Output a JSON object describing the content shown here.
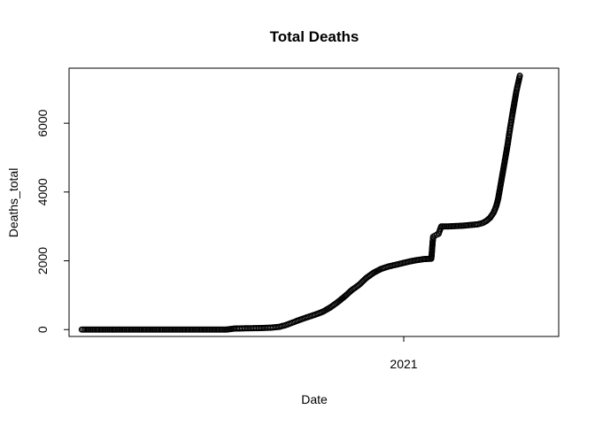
{
  "chart_data": {
    "type": "scatter",
    "title": "Total Deaths",
    "xlabel": "Date",
    "ylabel": "Deaths_total",
    "x_ticks": [
      "2021"
    ],
    "y_ticks": [
      0,
      2000,
      4000,
      6000
    ],
    "ylim": [
      -200,
      7600
    ],
    "xlim": [
      "2020-01-09",
      "2021-07-04"
    ],
    "grid": false,
    "legend": "none",
    "marker": "open-circle",
    "points": [
      {
        "x": "2020-01-23",
        "y": 0
      },
      {
        "x": "2020-02-08",
        "y": 0
      },
      {
        "x": "2020-02-24",
        "y": 0
      },
      {
        "x": "2020-03-11",
        "y": 0
      },
      {
        "x": "2020-03-27",
        "y": 0
      },
      {
        "x": "2020-04-12",
        "y": 0
      },
      {
        "x": "2020-04-28",
        "y": 0
      },
      {
        "x": "2020-05-14",
        "y": 0
      },
      {
        "x": "2020-05-30",
        "y": 0
      },
      {
        "x": "2020-06-15",
        "y": 0
      },
      {
        "x": "2020-07-01",
        "y": 0
      },
      {
        "x": "2020-07-10",
        "y": 30
      },
      {
        "x": "2020-07-20",
        "y": 35
      },
      {
        "x": "2020-07-30",
        "y": 40
      },
      {
        "x": "2020-08-09",
        "y": 45
      },
      {
        "x": "2020-08-19",
        "y": 55
      },
      {
        "x": "2020-08-29",
        "y": 80
      },
      {
        "x": "2020-09-06",
        "y": 140
      },
      {
        "x": "2020-09-14",
        "y": 220
      },
      {
        "x": "2020-09-22",
        "y": 300
      },
      {
        "x": "2020-09-30",
        "y": 370
      },
      {
        "x": "2020-10-08",
        "y": 440
      },
      {
        "x": "2020-10-16",
        "y": 520
      },
      {
        "x": "2020-10-24",
        "y": 640
      },
      {
        "x": "2020-11-01",
        "y": 790
      },
      {
        "x": "2020-11-09",
        "y": 960
      },
      {
        "x": "2020-11-17",
        "y": 1150
      },
      {
        "x": "2020-11-25",
        "y": 1300
      },
      {
        "x": "2020-12-03",
        "y": 1500
      },
      {
        "x": "2020-12-11",
        "y": 1650
      },
      {
        "x": "2020-12-19",
        "y": 1760
      },
      {
        "x": "2020-12-27",
        "y": 1830
      },
      {
        "x": "2021-01-04",
        "y": 1880
      },
      {
        "x": "2021-01-12",
        "y": 1930
      },
      {
        "x": "2021-01-20",
        "y": 1980
      },
      {
        "x": "2021-01-28",
        "y": 2020
      },
      {
        "x": "2021-02-05",
        "y": 2050
      },
      {
        "x": "2021-02-13",
        "y": 2060
      },
      {
        "x": "2021-02-15",
        "y": 2700
      },
      {
        "x": "2021-02-17",
        "y": 2730
      },
      {
        "x": "2021-02-19",
        "y": 2760
      },
      {
        "x": "2021-02-21",
        "y": 2780
      },
      {
        "x": "2021-02-24",
        "y": 3000
      },
      {
        "x": "2021-03-04",
        "y": 3000
      },
      {
        "x": "2021-03-12",
        "y": 3010
      },
      {
        "x": "2021-03-20",
        "y": 3020
      },
      {
        "x": "2021-03-28",
        "y": 3040
      },
      {
        "x": "2021-04-05",
        "y": 3060
      },
      {
        "x": "2021-04-11",
        "y": 3100
      },
      {
        "x": "2021-04-15",
        "y": 3160
      },
      {
        "x": "2021-04-19",
        "y": 3250
      },
      {
        "x": "2021-04-23",
        "y": 3400
      },
      {
        "x": "2021-04-26",
        "y": 3600
      },
      {
        "x": "2021-04-28",
        "y": 3800
      },
      {
        "x": "2021-04-30",
        "y": 4100
      },
      {
        "x": "2021-05-02",
        "y": 4400
      },
      {
        "x": "2021-05-04",
        "y": 4700
      },
      {
        "x": "2021-05-06",
        "y": 5000
      },
      {
        "x": "2021-05-08",
        "y": 5300
      },
      {
        "x": "2021-05-10",
        "y": 5650
      },
      {
        "x": "2021-05-12",
        "y": 5980
      },
      {
        "x": "2021-05-14",
        "y": 6300
      },
      {
        "x": "2021-05-16",
        "y": 6600
      },
      {
        "x": "2021-05-18",
        "y": 6900
      },
      {
        "x": "2021-05-20",
        "y": 7150
      },
      {
        "x": "2021-05-22",
        "y": 7380
      }
    ]
  }
}
